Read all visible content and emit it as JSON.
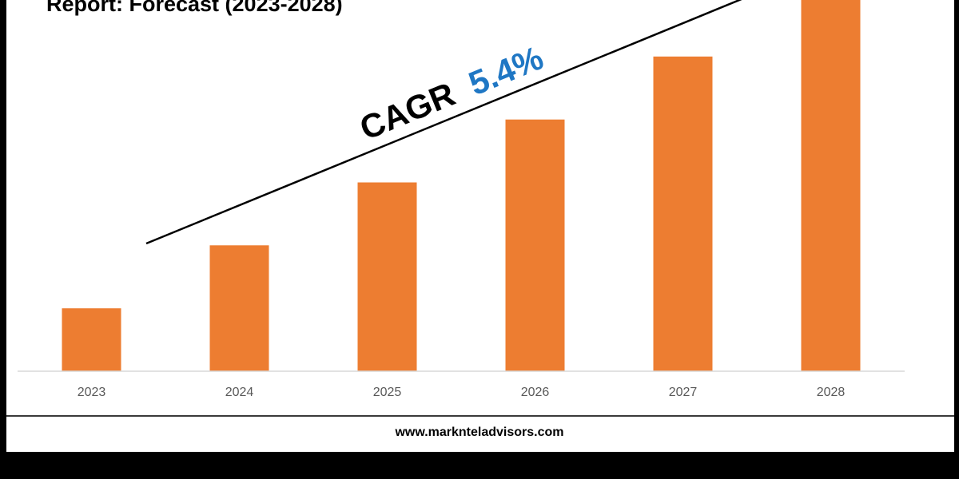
{
  "chart_data": {
    "type": "bar",
    "title": "Report: Forecast (2023-2028)",
    "categories": [
      "2023",
      "2024",
      "2025",
      "2026",
      "2027",
      "2028"
    ],
    "values": [
      1,
      2,
      3,
      4,
      5,
      6
    ],
    "xlabel": "",
    "ylabel": "",
    "ylim": [
      0,
      6
    ],
    "grid": false,
    "legend": "none",
    "annotations": [
      {
        "prefix": "CAGR",
        "value": "5.4%"
      }
    ],
    "colors": {
      "bar": "#ED7D31",
      "cagr_value": "#1F77C4",
      "trend_line": "#000000",
      "axis": "#D9D9D9"
    }
  },
  "footer": {
    "website": "www.marknteladvisors.com"
  }
}
